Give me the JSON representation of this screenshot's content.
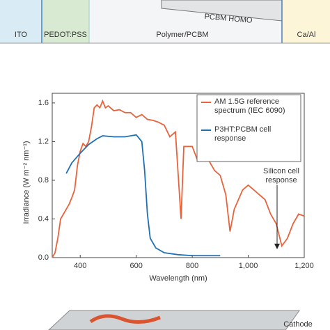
{
  "band_diagram": {
    "layers": [
      "ITO",
      "PEDOT:PSS",
      "Polymer/PCBM",
      "Ca/Al"
    ],
    "level_label": "PCBM HOMO"
  },
  "chart_data": {
    "type": "line",
    "x_label": "Wavelength (nm)",
    "y_label": "Irradiance (W m⁻² nm⁻¹)",
    "xlim": [
      300,
      1200
    ],
    "xticks": [
      400,
      600,
      800,
      {
        "value": 1000,
        "label": "1,000"
      },
      {
        "value": 1200,
        "label": "1,200"
      }
    ],
    "ylim": [
      0,
      1.7
    ],
    "yticks": [
      {
        "value": 0,
        "label": "0.0"
      },
      0.4,
      0.8,
      1.2,
      1.6
    ],
    "annotation": "Silicon cell response",
    "series": [
      {
        "name": "AM 1.5G reference spectrum (IEC 6090)",
        "color": "#e8623a",
        "x": [
          300,
          310,
          320,
          330,
          340,
          350,
          360,
          370,
          380,
          390,
          400,
          410,
          420,
          430,
          440,
          450,
          460,
          470,
          480,
          490,
          500,
          520,
          540,
          560,
          580,
          600,
          620,
          640,
          660,
          680,
          700,
          720,
          740,
          760,
          770,
          800,
          820,
          840,
          860,
          880,
          900,
          920,
          935,
          950,
          980,
          1000,
          1020,
          1040,
          1060,
          1080,
          1100,
          1120,
          1140,
          1160,
          1180,
          1200
        ],
        "values": [
          0.0,
          0.05,
          0.2,
          0.4,
          0.45,
          0.5,
          0.55,
          0.62,
          0.7,
          0.95,
          1.1,
          1.18,
          1.15,
          1.2,
          1.35,
          1.55,
          1.58,
          1.55,
          1.62,
          1.55,
          1.57,
          1.52,
          1.53,
          1.5,
          1.5,
          1.45,
          1.48,
          1.43,
          1.42,
          1.4,
          1.37,
          1.25,
          1.3,
          0.4,
          1.15,
          1.15,
          1.0,
          1.05,
          1.0,
          0.9,
          0.85,
          0.65,
          0.27,
          0.5,
          0.7,
          0.75,
          0.7,
          0.65,
          0.6,
          0.45,
          0.35,
          0.12,
          0.2,
          0.35,
          0.45,
          0.43
        ]
      },
      {
        "name": "P3HT:PCBM cell response",
        "color": "#1f6fb5",
        "x": [
          350,
          370,
          400,
          430,
          460,
          480,
          520,
          560,
          580,
          600,
          620,
          630,
          640,
          650,
          670,
          700,
          750,
          800,
          900
        ],
        "values": [
          0.87,
          0.98,
          1.08,
          1.17,
          1.23,
          1.26,
          1.25,
          1.25,
          1.26,
          1.27,
          1.2,
          0.9,
          0.45,
          0.2,
          0.1,
          0.05,
          0.03,
          0.02,
          0.02
        ]
      }
    ]
  },
  "device": {
    "label": "Cathode"
  }
}
